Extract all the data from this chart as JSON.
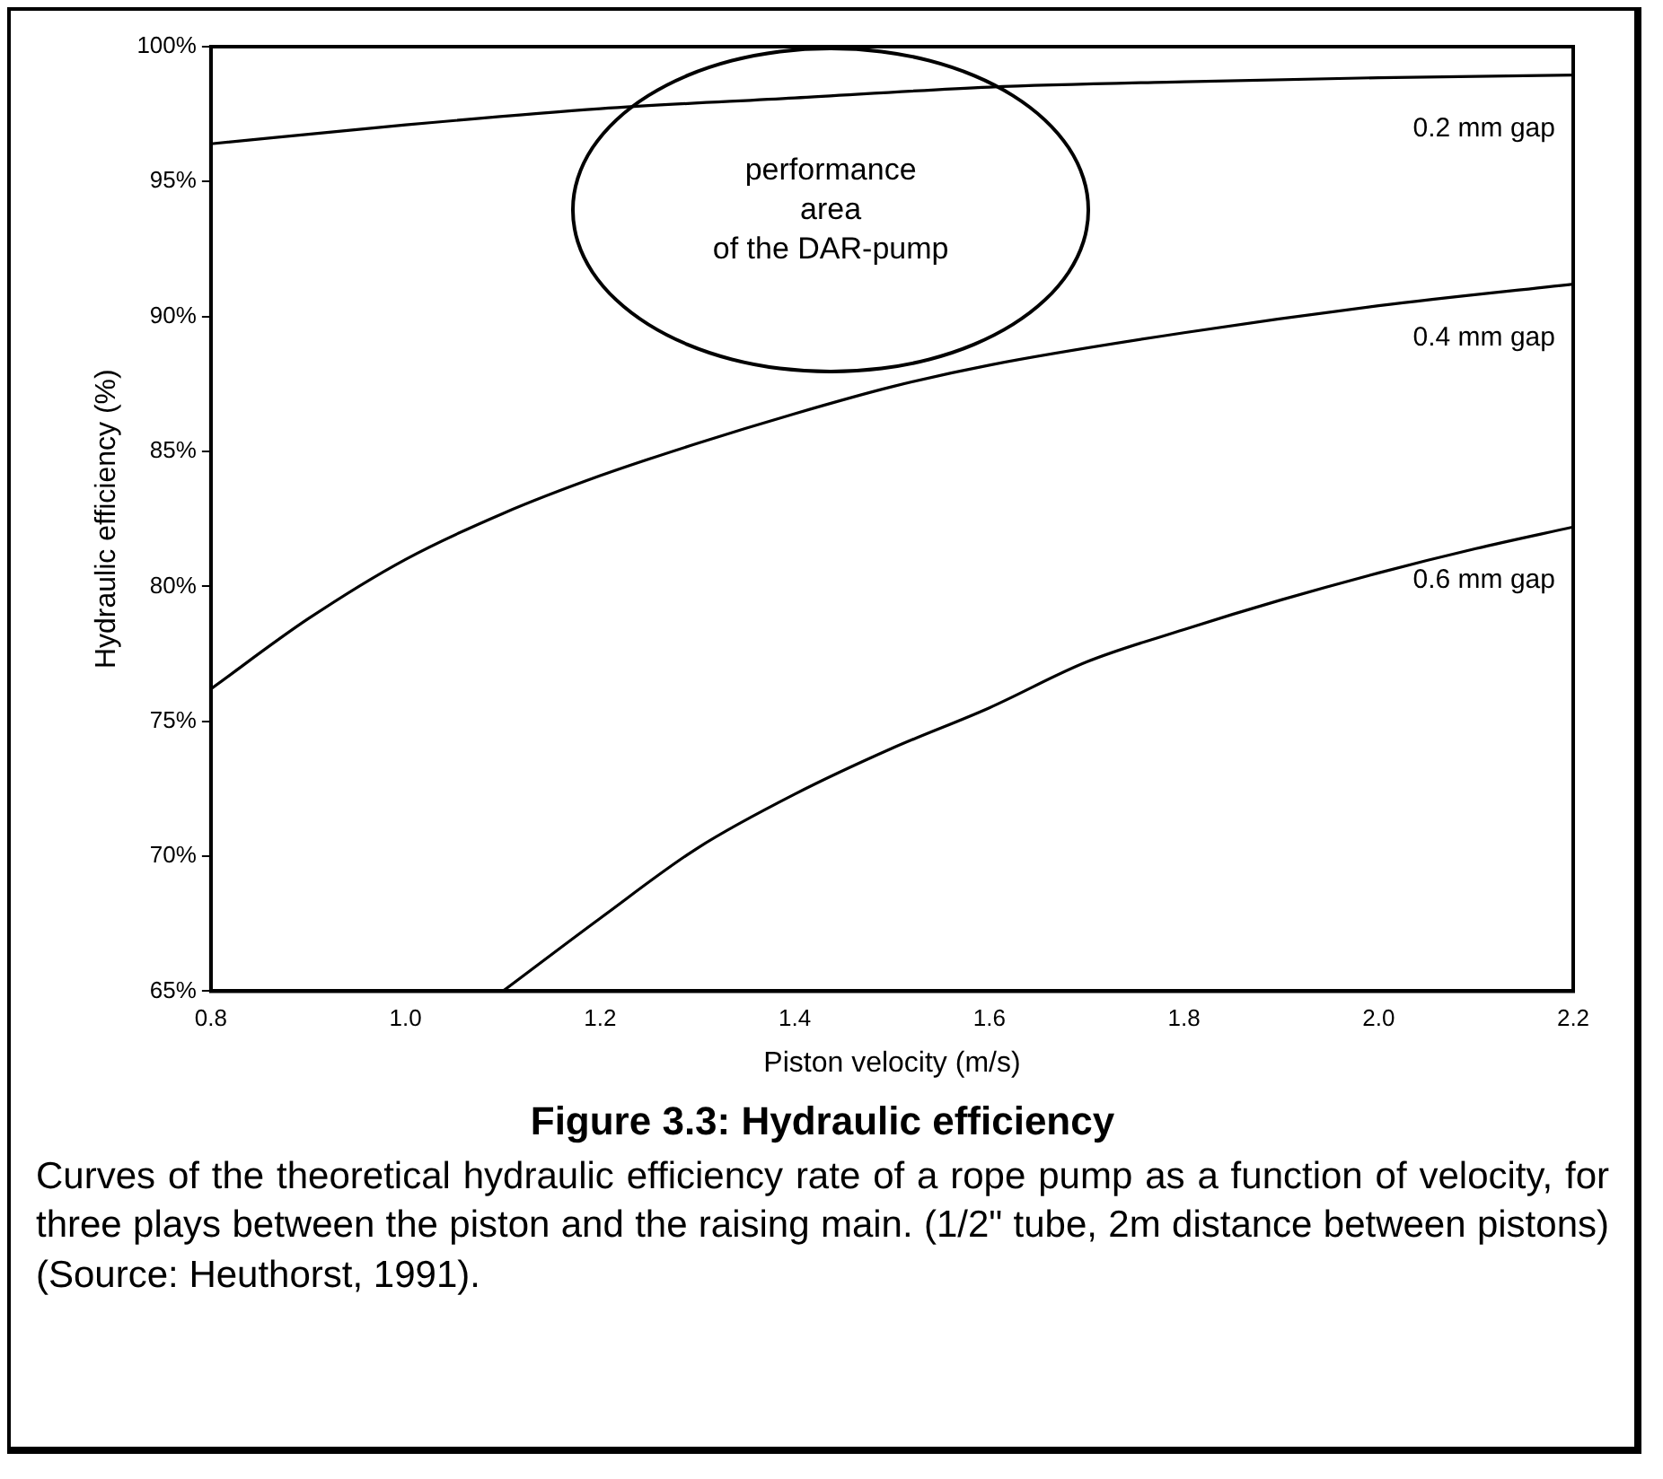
{
  "chart_data": {
    "type": "line",
    "title": "Figure 3.3:  Hydraulic efficiency",
    "xlabel": "Piston velocity (m/s)",
    "ylabel": "Hydraulic efficiency (%)",
    "xlim": [
      0.8,
      2.2
    ],
    "xticks": [
      0.8,
      {
        "value": 1,
        "label": "1.0"
      },
      1.2,
      1.4,
      1.6,
      1.8,
      {
        "value": 2,
        "label": "2.0"
      },
      2.2
    ],
    "ylim": [
      65,
      100
    ],
    "yticks": [
      {
        "value": 65,
        "label": "65%"
      },
      {
        "value": 70,
        "label": "70%"
      },
      {
        "value": 75,
        "label": "75%"
      },
      {
        "value": 80,
        "label": "80%"
      },
      {
        "value": 85,
        "label": "85%"
      },
      {
        "value": 90,
        "label": "90%"
      },
      {
        "value": 95,
        "label": "95%"
      },
      {
        "value": 100,
        "label": "100%"
      }
    ],
    "grid": false,
    "legend": false,
    "marker": "none",
    "line_style": "solid",
    "series": [
      {
        "name": "0.2 mm gap",
        "color": "#000000",
        "x": [
          0.8,
          1.0,
          1.2,
          1.4,
          1.6,
          1.8,
          2.0,
          2.2
        ],
        "values": [
          96.4,
          97.1,
          97.7,
          98.1,
          98.5,
          98.7,
          98.85,
          98.95
        ]
      },
      {
        "name": "0.4 mm gap",
        "color": "#000000",
        "x": [
          0.8,
          0.9,
          1.0,
          1.1,
          1.2,
          1.3,
          1.4,
          1.5,
          1.6,
          1.8,
          2.0,
          2.2
        ],
        "values": [
          76.2,
          78.8,
          81.0,
          82.7,
          84.1,
          85.3,
          86.4,
          87.4,
          88.2,
          89.4,
          90.4,
          91.2
        ]
      },
      {
        "name": "0.6 mm gap",
        "color": "#000000",
        "x": [
          1.1,
          1.2,
          1.3,
          1.4,
          1.5,
          1.6,
          1.7,
          1.8,
          1.9,
          2.0,
          2.1,
          2.2
        ],
        "values": [
          65,
          67.7,
          70.3,
          72.3,
          74.0,
          75.5,
          77.2,
          78.4,
          79.5,
          80.5,
          81.4,
          82.2
        ]
      }
    ],
    "annotations": [
      "performance\narea\nof the DAR-pump",
      "Curves of the theoretical hydraulic efficiency rate of a rope pump as a function of velocity, for three plays between the piston and the raising main. (1/2\" tube, 2m distance between pistons) (Source: Heuthorst, 1991)."
    ]
  }
}
